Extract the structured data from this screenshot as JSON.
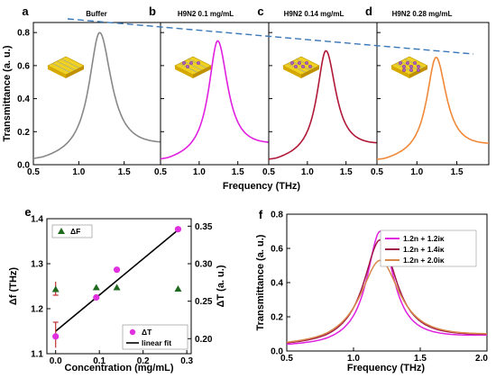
{
  "figure": {
    "panel_top": {
      "y_label": "Transmittance (a. u.)",
      "x_label": "Frequency (THz)",
      "x_ticks": [
        "0.5",
        "1.0",
        "1.5"
      ],
      "y_ticks": [
        "0.0",
        "0.2",
        "0.4",
        "0.6",
        "0.8"
      ],
      "panels": [
        {
          "letter": "a",
          "title": "Buffer",
          "color": "#888888",
          "peak": 0.8
        },
        {
          "letter": "b",
          "title": "H9N2 0.1 mg/mL",
          "color": "#e020e0",
          "peak": 0.75
        },
        {
          "letter": "c",
          "title": "H9N2 0.14 mg/mL",
          "color": "#b01838",
          "peak": 0.69
        },
        {
          "letter": "d",
          "title": "H9N2 0.28 mg/mL",
          "color": "#f08838",
          "peak": 0.65
        }
      ]
    },
    "panel_e": {
      "letter": "e",
      "x_label": "Concentration (mg/mL)",
      "y_label_left": "Δf (THz)",
      "y_label_right": "ΔT (a. u.)",
      "x_ticks": [
        "0.0",
        "0.1",
        "0.2",
        "0.3"
      ],
      "y_ticks_left": [
        "1.1",
        "1.2",
        "1.3",
        "1.4"
      ],
      "y_ticks_right": [
        "0.20",
        "0.25",
        "0.30",
        "0.35"
      ],
      "legend_top": "ΔF",
      "legend_bottom": [
        "ΔT",
        "linear fit"
      ]
    },
    "panel_f": {
      "letter": "f",
      "x_label": "Frequency (THz)",
      "y_label": "Transmittance (a. u.)",
      "x_ticks": [
        "0.5",
        "1.0",
        "1.5",
        "2.0"
      ],
      "y_ticks": [
        "0.0",
        "0.2",
        "0.4",
        "0.6",
        "0.8"
      ],
      "legend": [
        "1.2n + 1.2iκ",
        "1.2n + 1.4iκ",
        "1.2n + 2.0iκ"
      ]
    }
  },
  "chart_data": [
    {
      "type": "line",
      "panel": "a-d",
      "xlim": [
        0.5,
        1.9
      ],
      "ylim": [
        0.0,
        0.85
      ],
      "series": [
        {
          "name": "Buffer",
          "peak_x": 1.23,
          "peak_y": 0.8
        },
        {
          "name": "H9N2 0.1 mg/mL",
          "peak_x": 1.24,
          "peak_y": 0.75
        },
        {
          "name": "H9N2 0.14 mg/mL",
          "peak_x": 1.24,
          "peak_y": 0.69
        },
        {
          "name": "H9N2 0.28 mg/mL",
          "peak_x": 1.24,
          "peak_y": 0.65
        }
      ]
    },
    {
      "type": "scatter",
      "panel": "e",
      "xlim": [
        -0.02,
        0.31
      ],
      "ylim_left": [
        1.1,
        1.4
      ],
      "ylim_right": [
        0.18,
        0.36
      ],
      "delta_f": {
        "x": [
          0.0,
          0.093,
          0.14,
          0.28
        ],
        "y": [
          1.243,
          1.247,
          1.247,
          1.244
        ]
      },
      "delta_t": {
        "x": [
          0.0,
          0.093,
          0.14,
          0.28
        ],
        "y": [
          0.203,
          0.255,
          0.292,
          0.346
        ]
      },
      "fit": {
        "x": [
          0.0,
          0.28
        ],
        "y": [
          0.21,
          0.345
        ]
      }
    },
    {
      "type": "line",
      "panel": "f",
      "xlim": [
        0.5,
        2.0
      ],
      "ylim": [
        0.0,
        0.8
      ],
      "series": [
        {
          "name": "1.2n + 1.2iκ",
          "color": "#e020e0",
          "peak_x": 1.2,
          "peak_y": 0.7
        },
        {
          "name": "1.2n + 1.4iκ",
          "color": "#a01848",
          "peak_x": 1.2,
          "peak_y": 0.65
        },
        {
          "name": "1.2n + 2.0iκ",
          "color": "#d8884a",
          "peak_x": 1.2,
          "peak_y": 0.53
        }
      ]
    }
  ]
}
